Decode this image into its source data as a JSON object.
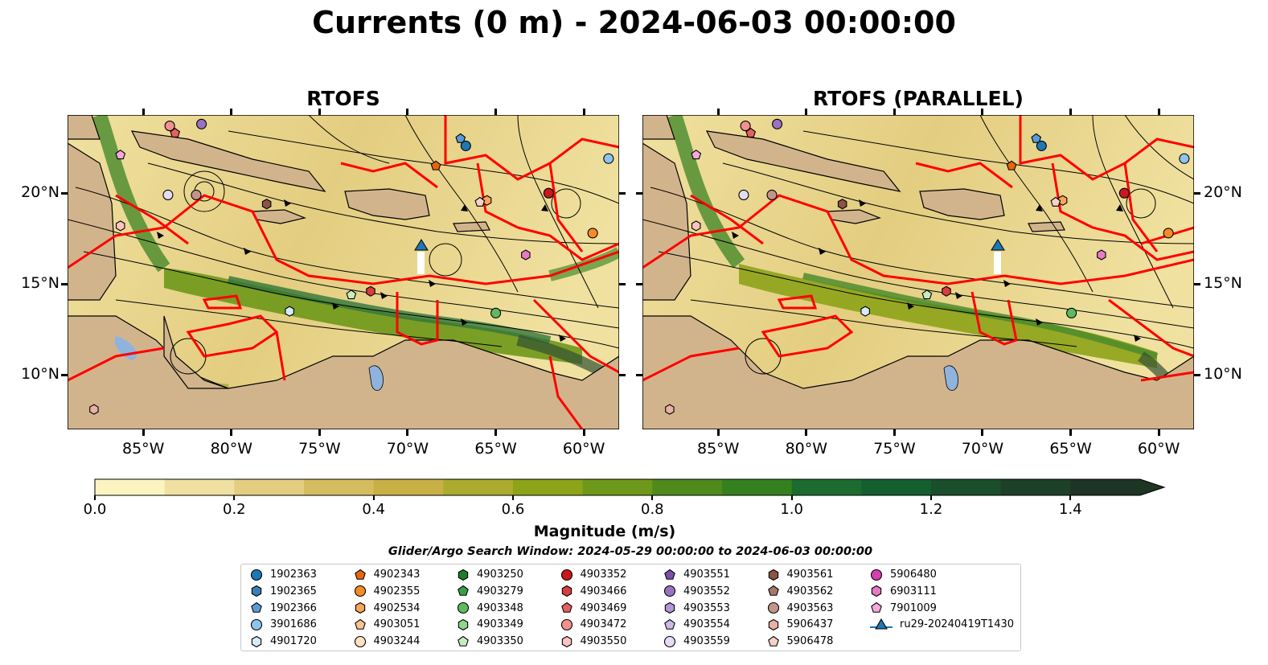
{
  "title": "Currents (0 m) - 2024-06-03 00:00:00",
  "panels": [
    {
      "title": "RTOFS"
    },
    {
      "title": "RTOFS (PARALLEL)"
    }
  ],
  "colors": {
    "land": "#d2b48c",
    "lakes": "#8fb3dd",
    "rivers": "#9fb8d3",
    "fronts": "#ff0000",
    "streamlines": "#000000",
    "glider": "#1f77b4"
  },
  "chart_data": {
    "type": "heatmap",
    "variable": "Magnitude (m/s)",
    "depth": "0 m",
    "datetime": "2024-06-03 00:00:00",
    "xlim": [
      -89.3,
      -58.0
    ],
    "ylim": [
      7.0,
      24.3
    ],
    "x_ticks": [
      "85°W",
      "80°W",
      "75°W",
      "70°W",
      "65°W",
      "60°W"
    ],
    "y_ticks": [
      "10°N",
      "15°N",
      "20°N"
    ],
    "x_tick_values": [
      -85,
      -80,
      -75,
      -70,
      -65,
      -60
    ],
    "y_tick_values": [
      10,
      15,
      20
    ],
    "colorbar": {
      "label": "Magnitude (m/s)",
      "range": [
        0.0,
        1.5
      ],
      "extend": "max",
      "ticks": [
        "0.0",
        "0.2",
        "0.4",
        "0.6",
        "0.8",
        "1.0",
        "1.2",
        "1.4"
      ],
      "colors": [
        "#fcf4c0",
        "#f0e1a0",
        "#e3cd80",
        "#d5bc5f",
        "#c8b046",
        "#abab2d",
        "#8da318",
        "#6e9819",
        "#4f8a1c",
        "#34801f",
        "#1d6c2f",
        "#135f30",
        "#1a4e2c",
        "#1d4028",
        "#1d3522"
      ]
    },
    "search_window": "Glider/Argo Search Window: 2024-05-29 00:00:00 to 2024-06-03 00:00:00",
    "glider": {
      "name": "ru29-20240419T1430",
      "lon": -69.1,
      "lat": 17.2,
      "track_end_lat": 16.0
    }
  },
  "legend": [
    {
      "label": "1902363",
      "marker": "circle",
      "color": "#1f77b4"
    },
    {
      "label": "1902365",
      "marker": "hexagon",
      "color": "#3a7fb8"
    },
    {
      "label": "1902366",
      "marker": "pentagon",
      "color": "#5a9bd5"
    },
    {
      "label": "3901686",
      "marker": "circle",
      "color": "#8ec3ec"
    },
    {
      "label": "4901720",
      "marker": "hexagon",
      "color": "#d6ebfa"
    },
    {
      "label": "4902343",
      "marker": "pentagon",
      "color": "#e8650c"
    },
    {
      "label": "4902355",
      "marker": "circle",
      "color": "#f58b28"
    },
    {
      "label": "4902534",
      "marker": "hexagon",
      "color": "#f8a55a"
    },
    {
      "label": "4903051",
      "marker": "pentagon",
      "color": "#fac48f"
    },
    {
      "label": "4903244",
      "marker": "circle",
      "color": "#fde1c2"
    },
    {
      "label": "4903250",
      "marker": "hexagon",
      "color": "#1e7f2a"
    },
    {
      "label": "4903279",
      "marker": "pentagon",
      "color": "#37a046"
    },
    {
      "label": "4903348",
      "marker": "circle",
      "color": "#5dbb5e"
    },
    {
      "label": "4903349",
      "marker": "hexagon",
      "color": "#8fd68b"
    },
    {
      "label": "4903350",
      "marker": "pentagon",
      "color": "#c7ecbd"
    },
    {
      "label": "4903352",
      "marker": "circle",
      "color": "#c8191c"
    },
    {
      "label": "4903466",
      "marker": "hexagon",
      "color": "#da3d3e"
    },
    {
      "label": "4903469",
      "marker": "pentagon",
      "color": "#e66061"
    },
    {
      "label": "4903472",
      "marker": "circle",
      "color": "#f39090"
    },
    {
      "label": "4903550",
      "marker": "hexagon",
      "color": "#fbc4c3"
    },
    {
      "label": "4903551",
      "marker": "pentagon",
      "color": "#7b50a8"
    },
    {
      "label": "4903552",
      "marker": "circle",
      "color": "#9a72c2"
    },
    {
      "label": "4903553",
      "marker": "hexagon",
      "color": "#b497d6"
    },
    {
      "label": "4903554",
      "marker": "pentagon",
      "color": "#ccb9e4"
    },
    {
      "label": "4903559",
      "marker": "circle",
      "color": "#e5dcf3"
    },
    {
      "label": "4903561",
      "marker": "hexagon",
      "color": "#8a5545"
    },
    {
      "label": "4903562",
      "marker": "pentagon",
      "color": "#a7776a"
    },
    {
      "label": "4903563",
      "marker": "circle",
      "color": "#c2958a"
    },
    {
      "label": "5906437",
      "marker": "hexagon",
      "color": "#e8b0a6"
    },
    {
      "label": "5906478",
      "marker": "pentagon",
      "color": "#f6d1c7"
    },
    {
      "label": "5906480",
      "marker": "circle",
      "color": "#d63fae"
    },
    {
      "label": "6903111",
      "marker": "hexagon",
      "color": "#e67ac5"
    },
    {
      "label": "7901009",
      "marker": "pentagon",
      "color": "#f4a9da"
    },
    {
      "label": "ru29-20240419T1430",
      "marker": "triangle-line",
      "color": "#1f77b4"
    }
  ],
  "floats_left": [
    {
      "label": "4903352",
      "lon": -62.0,
      "lat": 20.0
    },
    {
      "label": "3901686",
      "lon": -58.6,
      "lat": 21.9
    },
    {
      "label": "4902355",
      "lon": -59.5,
      "lat": 17.8
    },
    {
      "label": "4902534",
      "lon": -65.5,
      "lat": 19.6
    },
    {
      "label": "5906478",
      "lon": -65.9,
      "lat": 19.5
    },
    {
      "label": "4902343",
      "lon": -68.4,
      "lat": 21.5
    },
    {
      "label": "1902366",
      "lon": -67.0,
      "lat": 23.0
    },
    {
      "label": "1902363",
      "lon": -66.7,
      "lat": 22.6
    },
    {
      "label": "6903111",
      "lon": -63.3,
      "lat": 16.6
    },
    {
      "label": "4903348",
      "lon": -65.0,
      "lat": 13.4
    },
    {
      "label": "4903466",
      "lon": -72.1,
      "lat": 14.6
    },
    {
      "label": "4903350",
      "lon": -73.2,
      "lat": 14.4
    },
    {
      "label": "4901720",
      "lon": -76.7,
      "lat": 13.5
    },
    {
      "label": "4903559",
      "lon": -83.6,
      "lat": 19.9
    },
    {
      "label": "4903563",
      "lon": -82.0,
      "lat": 19.9
    },
    {
      "label": "4903561",
      "lon": -78.0,
      "lat": 19.4
    },
    {
      "label": "4903550",
      "lon": -86.3,
      "lat": 18.2
    },
    {
      "label": "7901009",
      "lon": -86.3,
      "lat": 22.1
    },
    {
      "label": "4903472",
      "lon": -83.5,
      "lat": 23.7
    },
    {
      "label": "4903469",
      "lon": -83.2,
      "lat": 23.3
    },
    {
      "label": "4903552",
      "lon": -81.7,
      "lat": 23.8
    },
    {
      "label": "5906437",
      "lon": -87.8,
      "lat": 8.1
    }
  ]
}
